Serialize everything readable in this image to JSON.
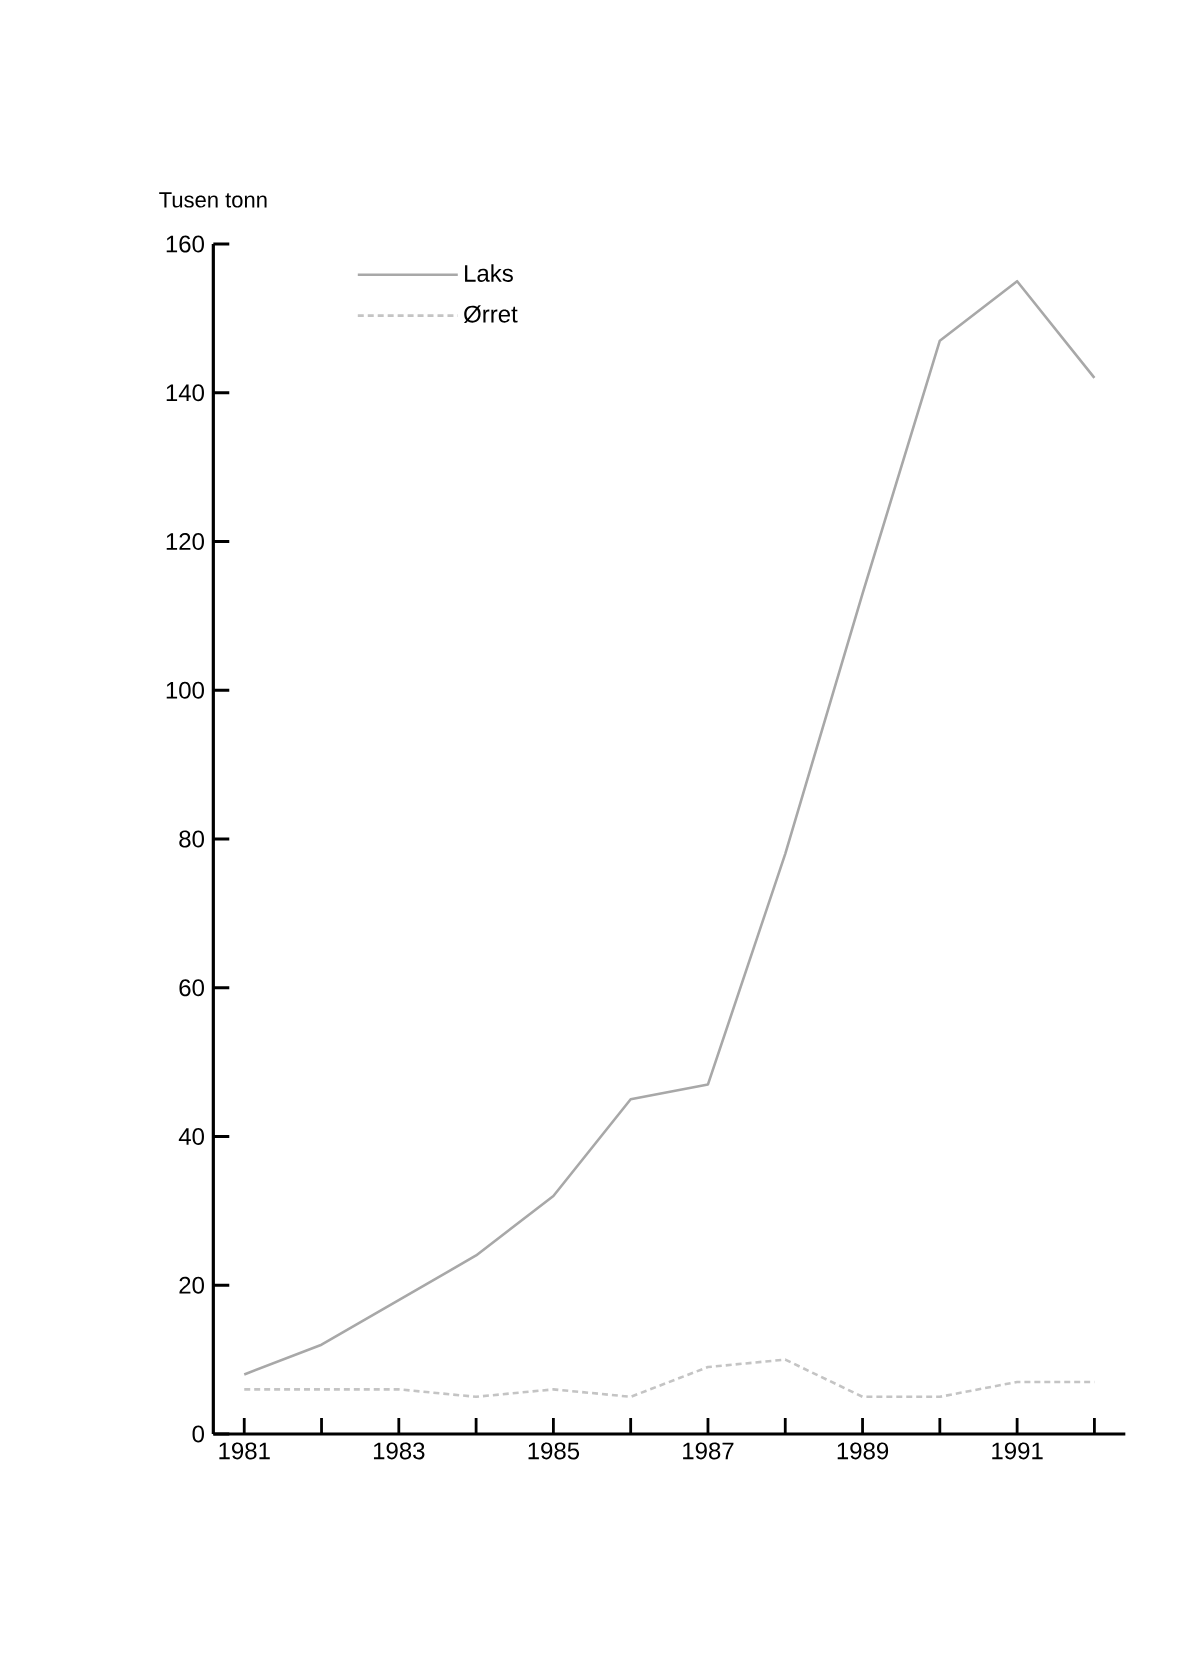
{
  "chart_data": {
    "type": "line",
    "ylabel": "Tusen tonn",
    "x": [
      1981,
      1982,
      1983,
      1984,
      1985,
      1986,
      1987,
      1988,
      1989,
      1990,
      1991,
      1992
    ],
    "series": [
      {
        "name": "Laks",
        "color": "#a8a8a8",
        "line_style": "solid",
        "values": [
          8,
          12,
          18,
          24,
          32,
          45,
          47,
          78,
          113,
          147,
          155,
          142
        ]
      },
      {
        "name": "Ørret",
        "color": "#c4c4c4",
        "line_style": "dashed",
        "values": [
          6,
          6,
          6,
          5,
          6,
          5,
          9,
          10,
          5,
          5,
          7,
          7
        ]
      }
    ],
    "xlim": [
      1980.6,
      1992.4
    ],
    "ylim": [
      0,
      160
    ],
    "xticks": [
      1981,
      {
        "value": 1982,
        "label": null
      },
      1983,
      {
        "value": 1984,
        "label": null
      },
      1985,
      {
        "value": 1986,
        "label": null
      },
      1987,
      {
        "value": 1988,
        "label": null
      },
      1989,
      {
        "value": 1990,
        "label": null
      },
      1991,
      {
        "value": 1992,
        "label": null
      }
    ],
    "yticks": [
      0,
      20,
      40,
      60,
      80,
      100,
      120,
      140,
      160
    ],
    "legend": "top left",
    "grid": false,
    "marker": "none"
  }
}
